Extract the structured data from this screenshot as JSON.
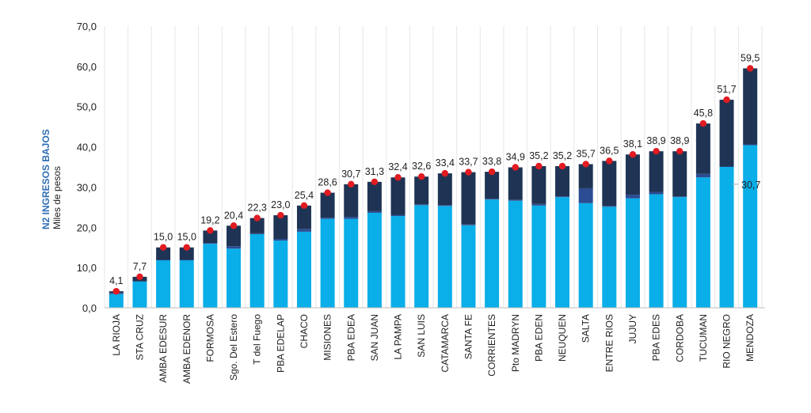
{
  "chart_data": {
    "type": "bar",
    "stacked": true,
    "ylabel_title": "N2 INGRESOS BAJOS",
    "ylabel_unit": "Miles de pesos",
    "ylim": [
      0,
      70
    ],
    "yticks": [
      "0,0",
      "10,0",
      "20,0",
      "30,0",
      "40,0",
      "50,0",
      "60,0",
      "70,0"
    ],
    "categories": [
      "LA RIOJA",
      "STA CRUZ",
      "AMBA EDESUR",
      "AMBA EDENOR",
      "FORMOSA",
      "Sgo. Del Estero",
      "T del Fuego",
      "PBA EDELAP",
      "CHACO",
      "MISIONES",
      "PBA EDEA",
      "SAN JUAN",
      "LA PAMPA",
      "SAN LUIS",
      "CATAMARCA",
      "SANTA FE",
      "CORRIENTES",
      "Pto MADRYN",
      "PBA EDEN",
      "NEUQUEN",
      "SALTA",
      "ENTRE RIOS",
      "JUJUY",
      "PBA EDES",
      "CORDOBA",
      "TUCUMAN",
      "RIO NEGRO",
      "MENDOZA"
    ],
    "total_labels": [
      "4,1",
      "7,7",
      "15,0",
      "15,0",
      "19,2",
      "20,4",
      "22,3",
      "23,0",
      "25,4",
      "28,6",
      "30,7",
      "31,3",
      "32,4",
      "32,6",
      "33,4",
      "33,7",
      "33,8",
      "34,9",
      "35,2",
      "35,2",
      "35,7",
      "36,5",
      "38,1",
      "38,9",
      "38,9",
      "45,8",
      "51,7",
      "59,5"
    ],
    "totals": [
      4.1,
      7.7,
      15.0,
      15.0,
      19.2,
      20.4,
      22.3,
      23.0,
      25.4,
      28.6,
      30.7,
      31.3,
      32.4,
      32.6,
      33.4,
      33.7,
      33.8,
      34.9,
      35.2,
      35.2,
      35.7,
      36.5,
      38.1,
      38.9,
      38.9,
      45.8,
      51.7,
      59.5
    ],
    "series": [
      {
        "values": [
          3.4,
          6.5,
          11.8,
          11.8,
          15.9,
          14.7,
          18.3,
          16.7,
          18.9,
          22.1,
          22.1,
          23.6,
          22.8,
          25.5,
          25.3,
          20.5,
          26.9,
          26.6,
          25.4,
          27.5,
          26.0,
          25.1,
          27.2,
          28.2,
          27.5,
          32.4,
          35.0,
          40.4
        ]
      },
      {
        "values": [
          0.3,
          0.1,
          0.1,
          0.1,
          0.2,
          0.6,
          0.2,
          0.4,
          0.7,
          0.3,
          0.5,
          0.4,
          0.3,
          0.2,
          0.2,
          0.2,
          0.2,
          0.2,
          0.4,
          0.2,
          3.7,
          0.2,
          0.9,
          0.6,
          0.2,
          0.9,
          0.1,
          0.2
        ]
      },
      {
        "values": [
          0.4,
          1.1,
          3.1,
          3.1,
          3.1,
          5.1,
          3.8,
          5.9,
          5.8,
          6.2,
          8.1,
          7.3,
          9.3,
          6.9,
          7.9,
          13.0,
          6.7,
          8.1,
          9.4,
          7.5,
          6.0,
          11.2,
          10.0,
          10.1,
          11.2,
          12.5,
          16.6,
          18.9
        ]
      }
    ],
    "colors": {
      "base": "#0aaee8",
      "mid": "#2b4c92",
      "top": "#1f3454",
      "dot": "#e11b22"
    },
    "reference_label": "30,7",
    "reference_value": 30.7
  }
}
